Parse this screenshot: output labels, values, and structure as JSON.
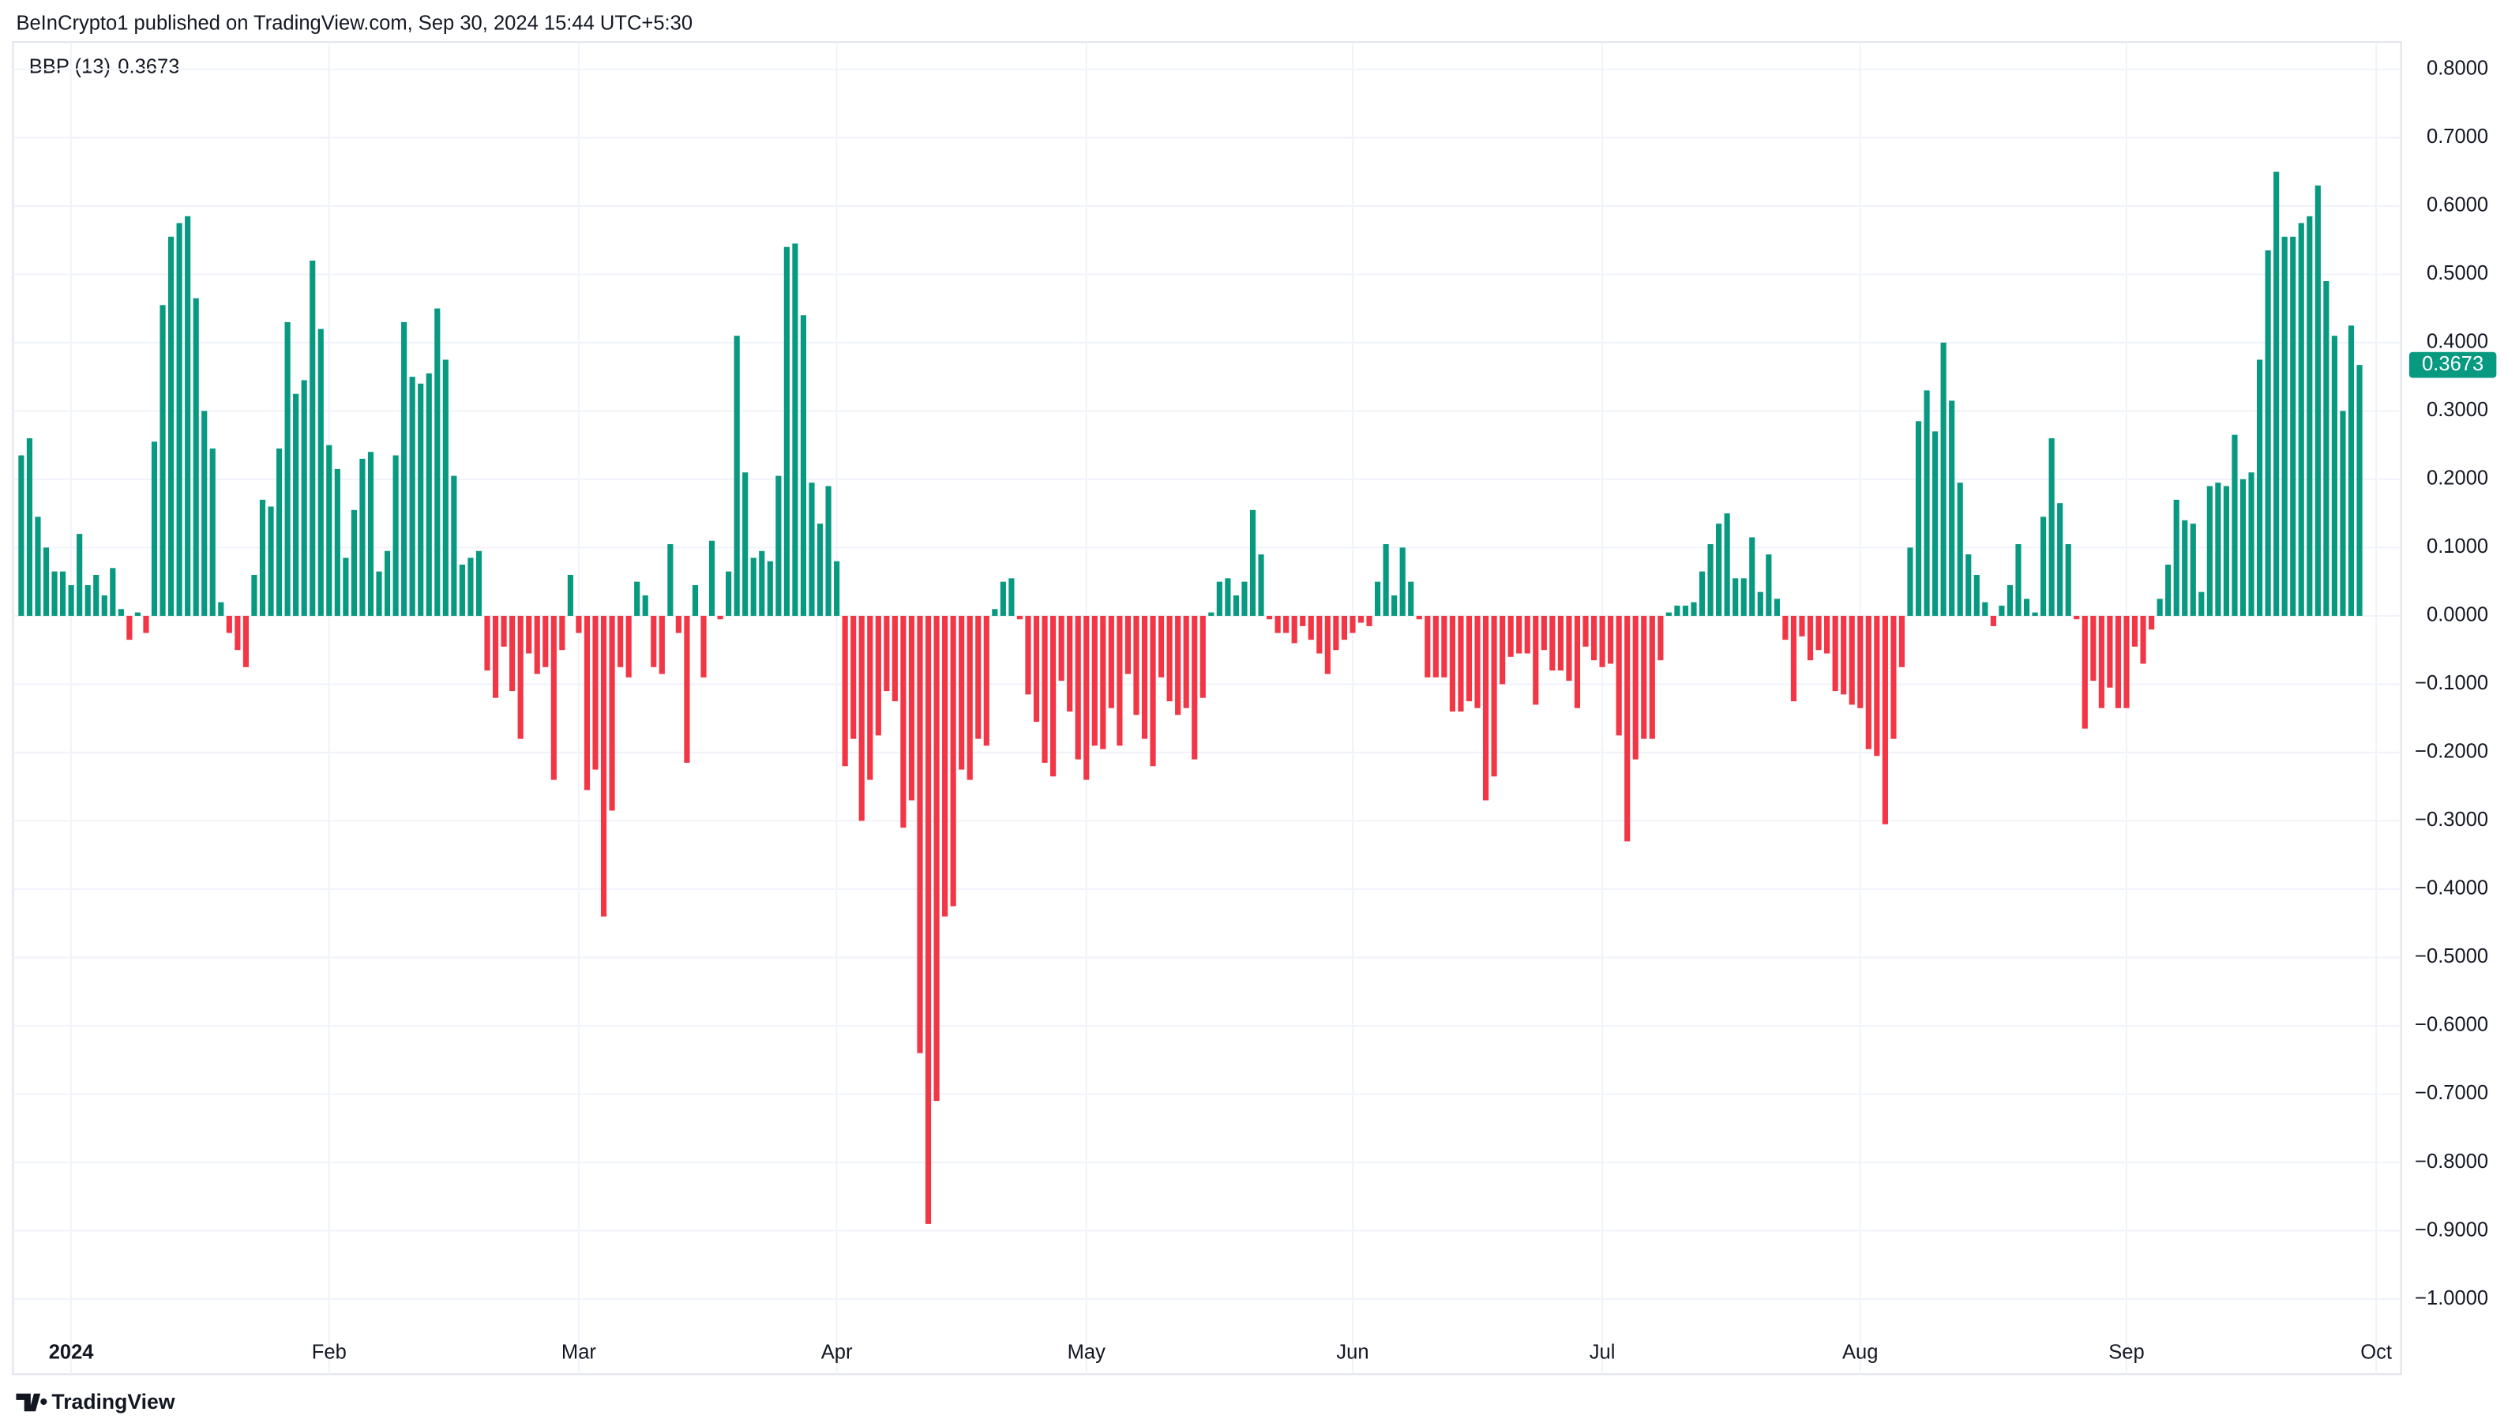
{
  "header": {
    "text": "BeInCrypto1 published on TradingView.com, Sep 30, 2024 15:44 UTC+5:30"
  },
  "footer": {
    "brand": "TradingView"
  },
  "chart_data": {
    "type": "bar",
    "series": [
      {
        "name": "BBP (13)",
        "up_color": "#089981",
        "down_color": "#f23645",
        "values": [
          0.235,
          0.26,
          0.145,
          0.1,
          0.065,
          0.065,
          0.045,
          0.12,
          0.045,
          0.06,
          0.03,
          0.07,
          0.01,
          -0.035,
          0.005,
          -0.025,
          0.255,
          0.455,
          0.555,
          0.575,
          0.585,
          0.465,
          0.3,
          0.245,
          0.02,
          -0.025,
          -0.05,
          -0.075,
          0.06,
          0.17,
          0.16,
          0.245,
          0.43,
          0.325,
          0.345,
          0.52,
          0.42,
          0.25,
          0.215,
          0.085,
          0.155,
          0.23,
          0.24,
          0.065,
          0.095,
          0.235,
          0.43,
          0.35,
          0.34,
          0.355,
          0.45,
          0.375,
          0.205,
          0.075,
          0.085,
          0.095,
          -0.08,
          -0.12,
          -0.045,
          -0.11,
          -0.18,
          -0.055,
          -0.085,
          -0.075,
          -0.24,
          -0.05,
          0.06,
          -0.025,
          -0.255,
          -0.225,
          -0.44,
          -0.285,
          -0.075,
          -0.09,
          0.05,
          0.03,
          -0.075,
          -0.085,
          0.105,
          -0.025,
          -0.215,
          0.045,
          -0.09,
          0.11,
          -0.005,
          0.065,
          0.41,
          0.21,
          0.085,
          0.095,
          0.08,
          0.205,
          0.54,
          0.545,
          0.44,
          0.195,
          0.135,
          0.19,
          0.08,
          -0.22,
          -0.18,
          -0.3,
          -0.24,
          -0.175,
          -0.11,
          -0.125,
          -0.31,
          -0.27,
          -0.64,
          -0.89,
          -0.71,
          -0.44,
          -0.425,
          -0.225,
          -0.24,
          -0.18,
          -0.19,
          0.01,
          0.05,
          0.055,
          -0.005,
          -0.115,
          -0.155,
          -0.215,
          -0.235,
          -0.095,
          -0.14,
          -0.21,
          -0.24,
          -0.19,
          -0.195,
          -0.135,
          -0.19,
          -0.085,
          -0.145,
          -0.18,
          -0.22,
          -0.09,
          -0.125,
          -0.145,
          -0.135,
          -0.21,
          -0.12,
          0.005,
          0.05,
          0.055,
          0.03,
          0.05,
          0.155,
          0.09,
          -0.005,
          -0.025,
          -0.025,
          -0.04,
          -0.015,
          -0.035,
          -0.055,
          -0.085,
          -0.05,
          -0.035,
          -0.025,
          -0.01,
          -0.015,
          0.05,
          0.105,
          0.03,
          0.1,
          0.05,
          -0.005,
          -0.09,
          -0.09,
          -0.09,
          -0.14,
          -0.14,
          -0.125,
          -0.135,
          -0.27,
          -0.235,
          -0.1,
          -0.06,
          -0.055,
          -0.055,
          -0.13,
          -0.05,
          -0.08,
          -0.08,
          -0.095,
          -0.135,
          -0.045,
          -0.065,
          -0.075,
          -0.07,
          -0.175,
          -0.33,
          -0.21,
          -0.18,
          -0.18,
          -0.065,
          0.005,
          0.015,
          0.015,
          0.02,
          0.065,
          0.105,
          0.135,
          0.15,
          0.055,
          0.055,
          0.115,
          0.035,
          0.09,
          0.025,
          -0.035,
          -0.125,
          -0.03,
          -0.065,
          -0.05,
          -0.055,
          -0.11,
          -0.115,
          -0.13,
          -0.135,
          -0.195,
          -0.205,
          -0.305,
          -0.18,
          -0.075,
          0.1,
          0.285,
          0.33,
          0.27,
          0.4,
          0.315,
          0.195,
          0.09,
          0.06,
          0.02,
          -0.015,
          0.015,
          0.045,
          0.105,
          0.025,
          0.005,
          0.145,
          0.26,
          0.165,
          0.105,
          -0.005,
          -0.165,
          -0.095,
          -0.135,
          -0.105,
          -0.135,
          -0.135,
          -0.045,
          -0.07,
          -0.02,
          0.025,
          0.075,
          0.17,
          0.14,
          0.135,
          0.035,
          0.19,
          0.195,
          0.19,
          0.265,
          0.2,
          0.21,
          0.375,
          0.535,
          0.65,
          0.555,
          0.555,
          0.575,
          0.585,
          0.63,
          0.49,
          0.41,
          0.3,
          0.425,
          0.3673
        ]
      }
    ],
    "xlim": [
      -1,
      286
    ],
    "xticks": [
      {
        "value": 6,
        "label": "2024"
      },
      {
        "value": 37,
        "label": "Feb"
      },
      {
        "value": 67,
        "label": "Mar"
      },
      {
        "value": 98,
        "label": "Apr"
      },
      {
        "value": 128,
        "label": "May"
      },
      {
        "value": 160,
        "label": "Jun"
      },
      {
        "value": 190,
        "label": "Jul"
      },
      {
        "value": 221,
        "label": "Aug"
      },
      {
        "value": 253,
        "label": "Sep"
      },
      {
        "value": 283,
        "label": "Oct"
      }
    ],
    "ylim": [
      -1.11,
      0.84
    ],
    "yticks": [
      {
        "value": 0.8,
        "label": "0.8000"
      },
      {
        "value": 0.7,
        "label": "0.7000"
      },
      {
        "value": 0.6,
        "label": "0.6000"
      },
      {
        "value": 0.5,
        "label": "0.5000"
      },
      {
        "value": 0.4,
        "label": "0.4000"
      },
      {
        "value": 0.3,
        "label": "0.3000"
      },
      {
        "value": 0.2,
        "label": "0.2000"
      },
      {
        "value": 0.1,
        "label": "0.1000"
      },
      {
        "value": 0,
        "label": "0.0000"
      },
      {
        "value": -0.1,
        "label": "−0.1000"
      },
      {
        "value": -0.2,
        "label": "−0.2000"
      },
      {
        "value": -0.3,
        "label": "−0.3000"
      },
      {
        "value": -0.4,
        "label": "−0.4000"
      },
      {
        "value": -0.5,
        "label": "−0.5000"
      },
      {
        "value": -0.6,
        "label": "−0.6000"
      },
      {
        "value": -0.7,
        "label": "−0.7000"
      },
      {
        "value": -0.8,
        "label": "−0.8000"
      },
      {
        "value": -0.9,
        "label": "−0.9000"
      },
      {
        "value": -1.0,
        "label": "−1.0000"
      }
    ],
    "grid": true
  }
}
